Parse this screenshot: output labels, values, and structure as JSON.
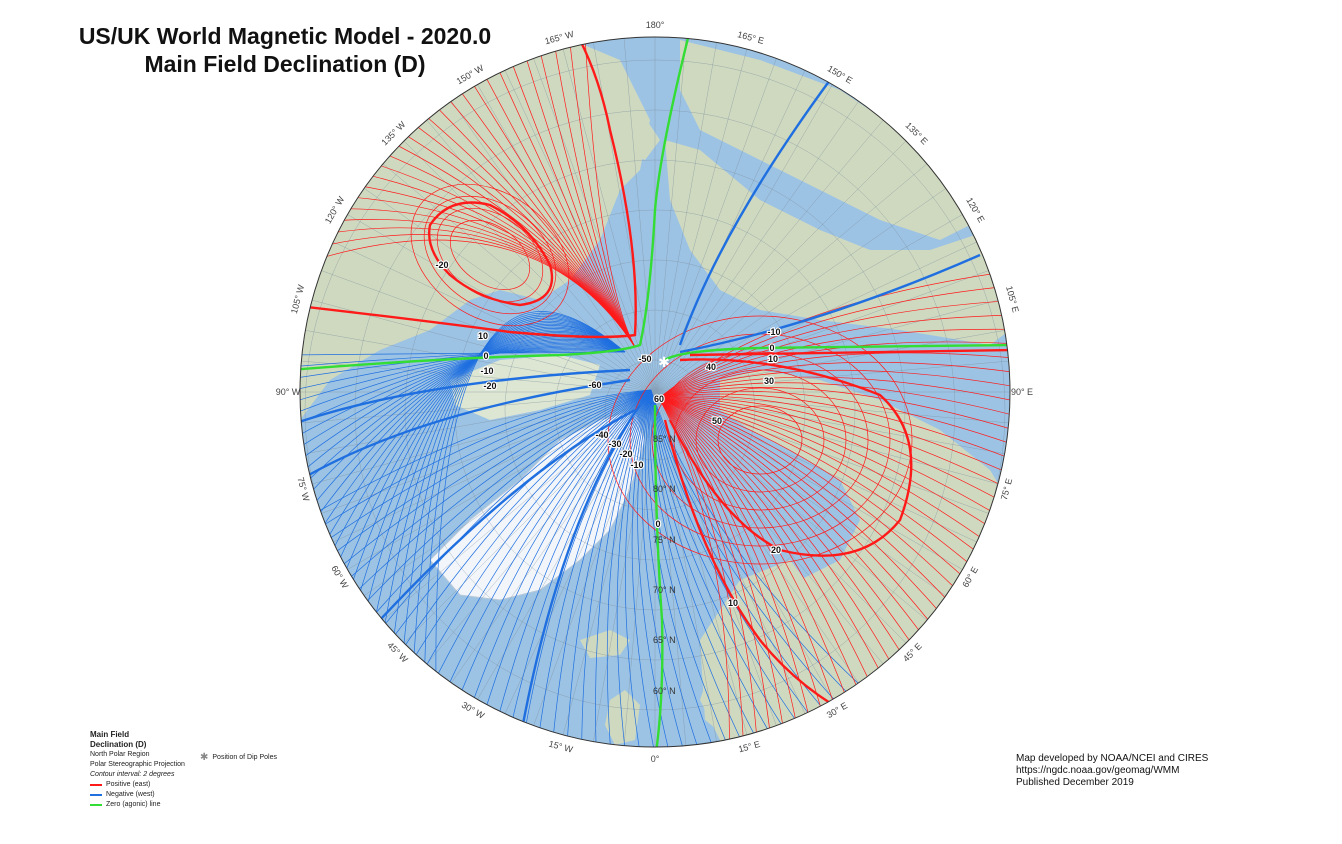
{
  "title": {
    "line1": "US/UK World Magnetic Model - 2020.0",
    "line2": "Main Field Declination (D)"
  },
  "map": {
    "projection": "Polar Stereographic",
    "region": "North Polar Region",
    "longitude_labels": [
      "180°",
      "165° E",
      "150° E",
      "135° E",
      "120° E",
      "105° E",
      "90° E",
      "75° E",
      "60° E",
      "45° E",
      "30° E",
      "15° E",
      "0°",
      "15° W",
      "30° W",
      "45° W",
      "60° W",
      "75° W",
      "90° W",
      "105° W",
      "120° W",
      "135° W",
      "150° W",
      "165° W"
    ],
    "latitude_labels": [
      "85° N",
      "80° N",
      "75° N",
      "70° N",
      "65° N",
      "60° N"
    ],
    "contour_labels": [
      "-50",
      "40",
      "10",
      "30",
      "0",
      "-10",
      "10",
      "0",
      "-10",
      "-20",
      "-20",
      "-60",
      "60",
      "50",
      "-40",
      "-30",
      "-20",
      "-10",
      "0",
      "20",
      "10"
    ],
    "colors": {
      "positive": "#ff1a1a",
      "negative": "#1f6fe0",
      "zero": "#33dd33",
      "ocean": "#9cc3e4",
      "land": "#cfd9c0",
      "ice": "#f2f6fb"
    },
    "dip_pole_marker": "star-icon"
  },
  "legend": {
    "heading1": "Main Field",
    "heading2": "Declination (D)",
    "region": "North Polar Region",
    "projection": "Polar Stereographic Projection",
    "interval": "Contour interval: 2 degrees",
    "positive": "Positive (east)",
    "negative": "Negative (west)",
    "zero": "Zero (agonic) line",
    "dip_poles": "Position of Dip Poles"
  },
  "credits": {
    "line1": "Map developed by NOAA/NCEI and CIRES",
    "line2": "https://ngdc.noaa.gov/geomag/WMM",
    "line3": "Published December 2019"
  }
}
